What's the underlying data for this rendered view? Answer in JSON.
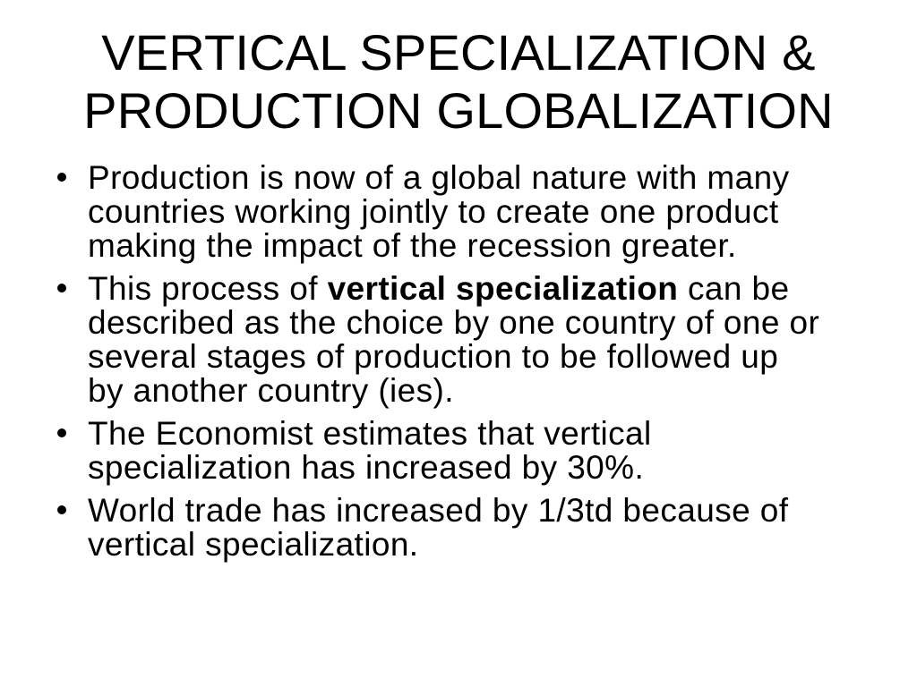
{
  "slide": {
    "title": {
      "lines": [
        "VERTICAL SPECIALIZATION &",
        "PRODUCTION GLOBALIZATION"
      ]
    },
    "bullets": [
      {
        "lines": [
          [
            {
              "t": "Production is now of a global nature with many"
            }
          ],
          [
            {
              "t": "countries working jointly to create one product"
            }
          ],
          [
            {
              "t": "making the impact of the recession greater."
            }
          ]
        ]
      },
      {
        "lines": [
          [
            {
              "t": "This process of "
            },
            {
              "t": "vertical specialization",
              "b": true
            },
            {
              "t": " can be"
            }
          ],
          [
            {
              "t": "described as the choice by one country of one or"
            }
          ],
          [
            {
              "t": "several stages of production to be followed up"
            }
          ],
          [
            {
              "t": "by another country (ies)."
            }
          ]
        ]
      },
      {
        "lines": [
          [
            {
              "t": "The Economist estimates that vertical"
            }
          ],
          [
            {
              "t": "specialization has increased by 30%."
            }
          ]
        ]
      },
      {
        "lines": [
          [
            {
              "t": "World trade has increased by 1/3td because of"
            }
          ],
          [
            {
              "t": "vertical specialization."
            }
          ]
        ]
      }
    ],
    "colors": {
      "background": "#ffffff",
      "text": "#000000"
    }
  }
}
